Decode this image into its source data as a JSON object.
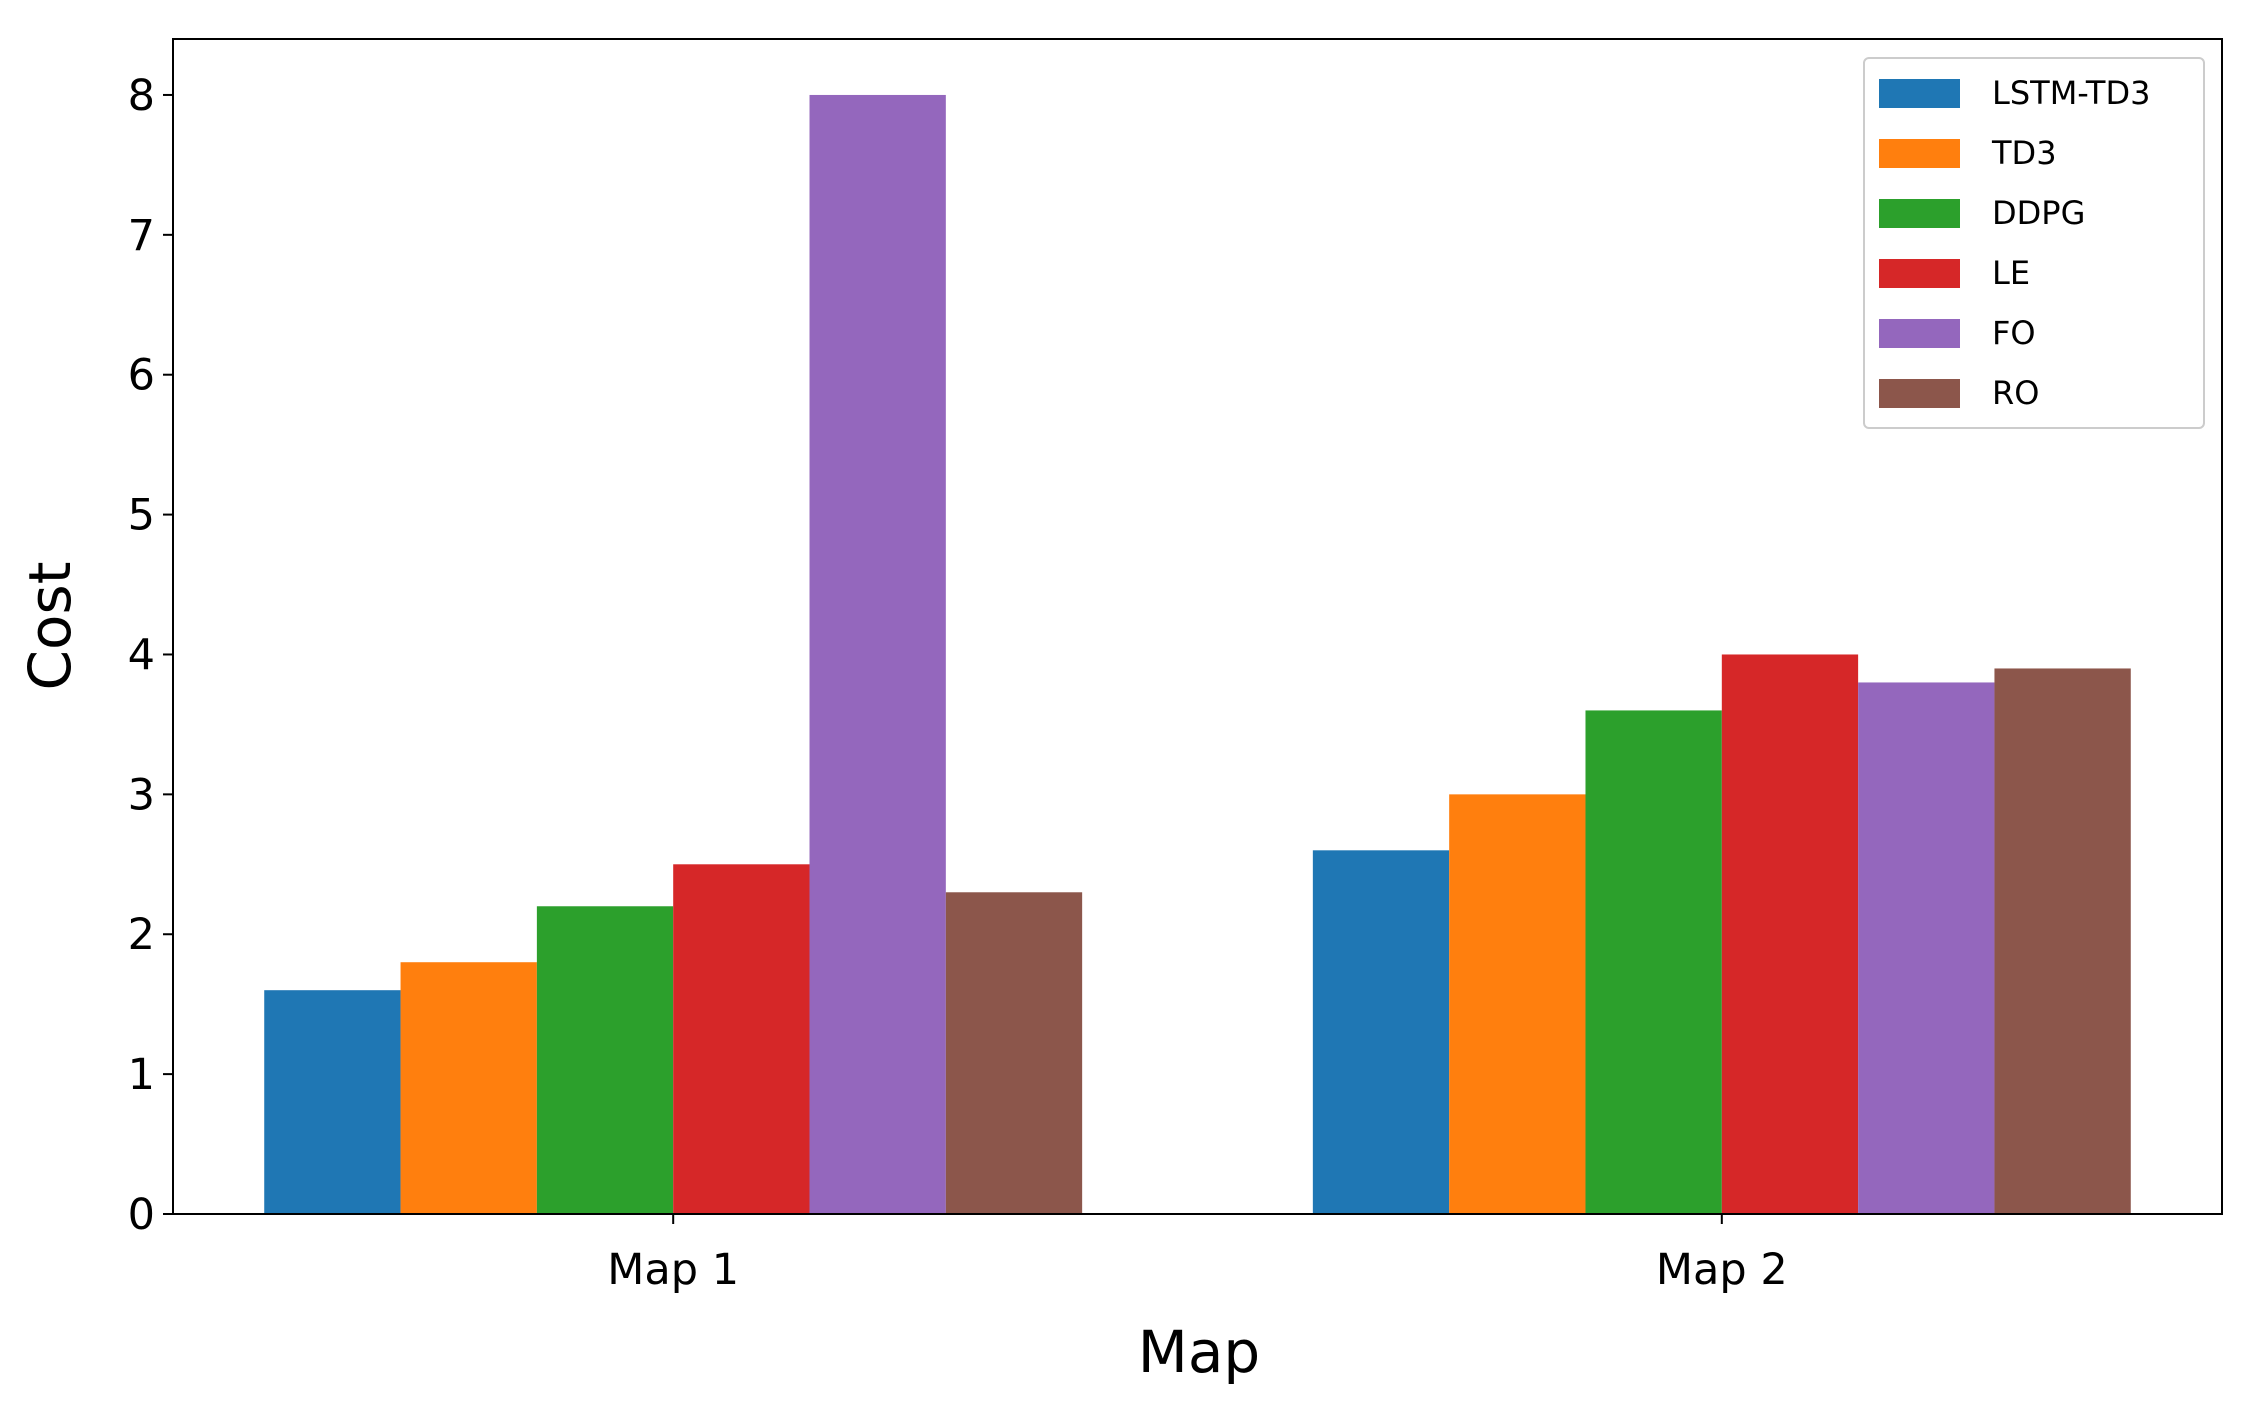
{
  "chart_data": {
    "type": "bar",
    "x_label": "Map",
    "y_label": "Cost",
    "categories": [
      "Map 1",
      "Map 2"
    ],
    "series": [
      {
        "name": "LSTM-TD3",
        "color": "#1f77b4",
        "values": [
          1.6,
          2.6
        ]
      },
      {
        "name": "TD3",
        "color": "#ff7f0e",
        "values": [
          1.8,
          3.0
        ]
      },
      {
        "name": "DDPG",
        "color": "#2ca02c",
        "values": [
          2.2,
          3.6
        ]
      },
      {
        "name": "LE",
        "color": "#d62728",
        "values": [
          2.5,
          4.0
        ]
      },
      {
        "name": "FO",
        "color": "#9467bd",
        "values": [
          8.0,
          3.8
        ]
      },
      {
        "name": "RO",
        "color": "#8c564b",
        "values": [
          2.3,
          3.9
        ]
      }
    ],
    "ylim": [
      0,
      8.4
    ],
    "yticks": [
      0,
      1,
      2,
      3,
      4,
      5,
      6,
      7,
      8
    ],
    "legend": "upper right"
  }
}
